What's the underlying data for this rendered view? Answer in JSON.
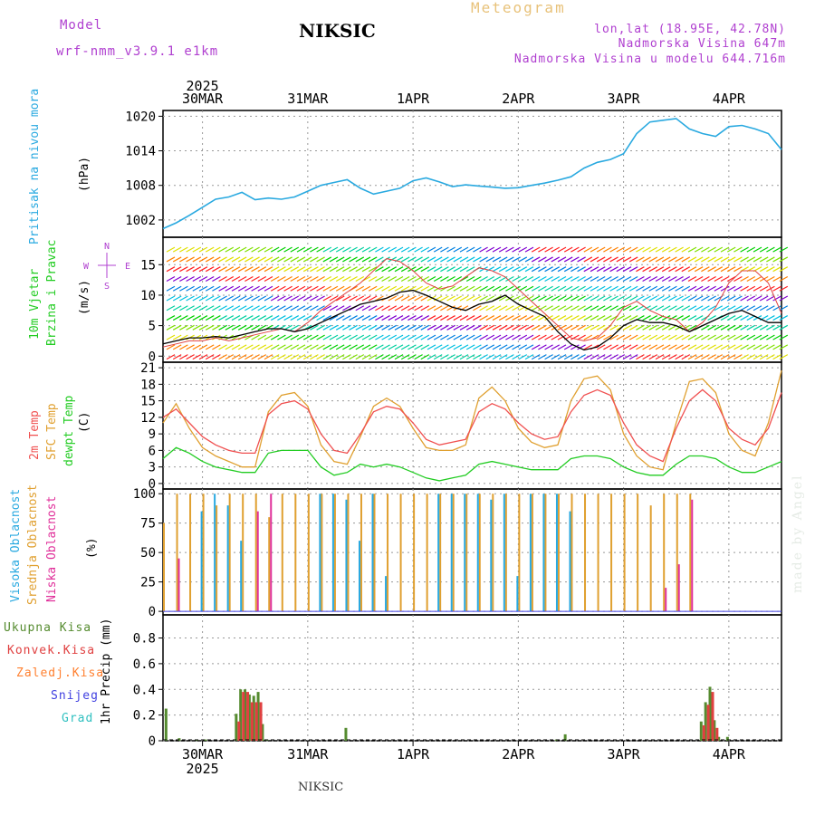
{
  "header": {
    "model_label": "Model",
    "model_name": "wrf-nmm_v3.9.1 e1km",
    "station": "NIKSIC",
    "title": "Meteogram",
    "lonlat": "lon,lat (18.95E, 42.78N)",
    "elevation": "Nadmorska Visina 647m",
    "model_elevation": "Nadmorska Visina u modelu 644.716m"
  },
  "footer": {
    "station": "NIKSIC",
    "watermark": "made by Angel"
  },
  "colors": {
    "pressure": "#29a9e0",
    "temp2m": "#f05050",
    "sfc_temp": "#e0a030",
    "dewpt": "#22cc22",
    "high_cloud": "#29a9e0",
    "mid_cloud": "#e0a030",
    "low_cloud": "#e0309a",
    "total_precip": "#558b2f",
    "conv_precip": "#e04040",
    "frozen_precip": "#ff8030",
    "snow": "#4040e0",
    "hail": "#30c0c0",
    "model_text": "#b040d0",
    "title_text": "#e8c27a"
  },
  "chart_data": [
    {
      "type": "line",
      "panel": "pressure",
      "ylabel": "(hPa)",
      "side_labels": [
        "Pritisak na nivou mora"
      ],
      "x_tick_labels": [
        "30MAR",
        "31MAR",
        "1APR",
        "2APR",
        "3APR",
        "4APR"
      ],
      "x_year": "2025",
      "yticks": [
        1002,
        1008,
        1014,
        1020
      ],
      "ylim": [
        999,
        1021
      ],
      "grid": true,
      "x_start": "2025-03-29 15:00",
      "x_end": "2025-04-04 12:00",
      "series": [
        {
          "x": [
            "2025-03-29 15:00",
            "2025-03-29 18:00",
            "2025-03-29 21:00",
            "2025-03-30 00:00",
            "2025-03-30 03:00",
            "2025-03-30 06:00",
            "2025-03-30 09:00",
            "2025-03-30 12:00",
            "2025-03-30 15:00",
            "2025-03-30 18:00",
            "2025-03-30 21:00",
            "2025-03-31 00:00",
            "2025-03-31 03:00",
            "2025-03-31 06:00",
            "2025-03-31 09:00",
            "2025-03-31 12:00",
            "2025-03-31 15:00",
            "2025-03-31 18:00",
            "2025-03-31 21:00",
            "2025-04-01 00:00",
            "2025-04-01 03:00",
            "2025-04-01 06:00",
            "2025-04-01 09:00",
            "2025-04-01 12:00",
            "2025-04-01 15:00",
            "2025-04-01 18:00",
            "2025-04-01 21:00",
            "2025-04-02 00:00",
            "2025-04-02 03:00",
            "2025-04-02 06:00",
            "2025-04-02 09:00",
            "2025-04-02 12:00",
            "2025-04-02 15:00",
            "2025-04-02 18:00",
            "2025-04-02 21:00",
            "2025-04-03 00:00",
            "2025-04-03 03:00",
            "2025-04-03 06:00",
            "2025-04-03 09:00",
            "2025-04-03 12:00",
            "2025-04-03 15:00",
            "2025-04-03 18:00",
            "2025-04-03 21:00",
            "2025-04-04 00:00",
            "2025-04-04 03:00",
            "2025-04-04 06:00",
            "2025-04-04 09:00",
            "2025-04-04 12:00"
          ],
          "values": [
            1000.5,
            1001.5,
            1002.8,
            1004.2,
            1005.6,
            1006.0,
            1006.8,
            1005.5,
            1005.8,
            1005.6,
            1006.0,
            1007.0,
            1008.0,
            1008.5,
            1009.0,
            1007.5,
            1006.5,
            1007.0,
            1007.5,
            1008.8,
            1009.3,
            1008.6,
            1007.8,
            1008.1,
            1007.9,
            1007.7,
            1007.5,
            1007.6,
            1008.0,
            1008.4,
            1008.9,
            1009.5,
            1011.0,
            1012.0,
            1012.5,
            1013.5,
            1017.0,
            1019.0,
            1019.3,
            1019.6,
            1017.8,
            1017.0,
            1016.5,
            1018.2,
            1018.4,
            1017.8,
            1017.0,
            1014.2
          ]
        }
      ]
    },
    {
      "type": "line",
      "panel": "wind",
      "ylabel": "(m/s)",
      "side_labels": [
        "10m Vjetar",
        "Brzina i Pravac"
      ],
      "compass": [
        "N",
        "W",
        "E",
        "S"
      ],
      "yticks": [
        0,
        5,
        10,
        15
      ],
      "ylim": [
        -1,
        19.5
      ],
      "series": [
        {
          "name": "speed",
          "values": [
            2.0,
            2.5,
            3.0,
            3.0,
            3.2,
            3.0,
            3.5,
            4.0,
            4.5,
            4.5,
            4.0,
            4.5,
            5.5,
            6.5,
            7.5,
            8.5,
            9.0,
            9.5,
            10.5,
            10.8,
            10.0,
            9.0,
            8.0,
            7.5,
            8.5,
            9.0,
            10.0,
            8.5,
            7.5,
            6.5,
            4.0,
            2.0,
            1.0,
            1.5,
            3.0,
            5.0,
            6.0,
            5.5,
            5.5,
            5.0,
            4.0,
            5.0,
            6.0,
            7.0,
            7.5,
            6.5,
            5.5,
            5.5
          ]
        },
        {
          "name": "gust",
          "values": [
            1.5,
            2.0,
            2.5,
            2.5,
            3.0,
            2.5,
            3.0,
            3.5,
            4.0,
            4.5,
            4.0,
            5.5,
            7.5,
            9.0,
            10.5,
            12.0,
            14.0,
            16.0,
            15.5,
            14.0,
            12.0,
            11.0,
            11.5,
            13.0,
            14.5,
            14.0,
            13.0,
            11.0,
            9.0,
            7.0,
            5.0,
            3.0,
            2.5,
            3.0,
            5.0,
            8.0,
            9.0,
            7.5,
            6.5,
            6.0,
            4.0,
            5.5,
            8.0,
            12.0,
            14.0,
            14.0,
            12.0,
            7.0
          ]
        }
      ]
    },
    {
      "type": "line",
      "panel": "temperature",
      "ylabel": "(C)",
      "side_labels": [
        "2m Temp",
        "SFC Temp",
        "dewpt Temp"
      ],
      "yticks": [
        0,
        3,
        6,
        9,
        12,
        15,
        18,
        21
      ],
      "ylim": [
        -1,
        22
      ],
      "series": [
        {
          "name": "2m Temp",
          "values": [
            12.0,
            13.5,
            11.0,
            8.5,
            7.0,
            6.0,
            5.5,
            5.5,
            12.5,
            14.5,
            15.0,
            13.5,
            9.0,
            6.0,
            5.5,
            9.0,
            13.0,
            14.0,
            13.5,
            11.0,
            8.0,
            7.0,
            7.5,
            8.0,
            13.0,
            14.5,
            13.5,
            11.0,
            9.0,
            8.0,
            8.5,
            13.0,
            16.0,
            17.0,
            16.0,
            11.0,
            7.0,
            5.0,
            4.0,
            10.0,
            15.0,
            17.0,
            15.0,
            10.0,
            8.0,
            7.0,
            10.0,
            16.5
          ]
        },
        {
          "name": "SFC Temp",
          "values": [
            11.0,
            14.5,
            10.0,
            6.5,
            5.0,
            4.0,
            3.0,
            3.0,
            13.0,
            16.0,
            16.5,
            14.0,
            7.0,
            4.0,
            3.5,
            8.5,
            14.0,
            15.5,
            14.0,
            10.0,
            6.5,
            6.0,
            6.0,
            7.0,
            15.5,
            17.5,
            15.0,
            10.0,
            7.5,
            6.5,
            7.0,
            15.0,
            19.0,
            19.5,
            17.0,
            9.0,
            5.0,
            3.0,
            2.5,
            11.0,
            18.5,
            19.0,
            16.5,
            9.0,
            6.0,
            5.0,
            11.0,
            20.5
          ]
        },
        {
          "name": "dewpt Temp",
          "values": [
            4.5,
            6.5,
            5.5,
            4.0,
            3.0,
            2.5,
            2.0,
            2.0,
            5.5,
            6.0,
            6.0,
            6.0,
            3.0,
            1.5,
            2.0,
            3.5,
            3.0,
            3.5,
            3.0,
            2.0,
            1.0,
            0.5,
            1.0,
            1.5,
            3.5,
            4.0,
            3.5,
            3.0,
            2.5,
            2.5,
            2.5,
            4.5,
            5.0,
            5.0,
            4.5,
            3.0,
            2.0,
            1.5,
            1.5,
            3.5,
            5.0,
            5.0,
            4.5,
            3.0,
            2.0,
            2.0,
            3.0,
            4.0
          ]
        }
      ]
    },
    {
      "type": "bar",
      "panel": "cloud",
      "ylabel": "(%)",
      "side_labels": [
        "Visoka Oblacnost",
        "Srednja Oblacnost",
        "Niska Oblacnost"
      ],
      "yticks": [
        0,
        25,
        50,
        75,
        100
      ],
      "ylim": [
        -3,
        104
      ],
      "series": [
        {
          "name": "Visoka Oblacnost",
          "values": [
            0,
            0,
            0,
            85,
            100,
            90,
            60,
            0,
            0,
            0,
            0,
            0,
            100,
            100,
            95,
            60,
            100,
            30,
            0,
            0,
            0,
            100,
            100,
            100,
            100,
            95,
            100,
            30,
            100,
            100,
            100,
            85,
            0,
            0,
            0,
            0,
            0,
            0,
            0,
            0,
            0,
            0,
            0,
            0,
            0,
            0,
            0,
            0
          ]
        },
        {
          "name": "Srednja Oblacnost",
          "values": [
            75,
            100,
            100,
            100,
            90,
            100,
            100,
            100,
            80,
            100,
            100,
            100,
            100,
            100,
            100,
            100,
            100,
            100,
            100,
            100,
            100,
            100,
            100,
            100,
            100,
            100,
            100,
            100,
            100,
            100,
            100,
            100,
            100,
            100,
            100,
            100,
            100,
            90,
            100,
            100,
            100,
            0,
            0,
            0,
            0,
            0,
            0,
            0
          ]
        },
        {
          "name": "Niska Oblacnost",
          "values": [
            0,
            45,
            0,
            0,
            0,
            0,
            0,
            85,
            100,
            0,
            0,
            0,
            0,
            0,
            0,
            0,
            0,
            0,
            0,
            0,
            0,
            0,
            0,
            0,
            0,
            0,
            0,
            0,
            0,
            0,
            0,
            0,
            0,
            0,
            0,
            0,
            0,
            0,
            20,
            40,
            95,
            0,
            0,
            0,
            0,
            0,
            0,
            0
          ]
        }
      ]
    },
    {
      "type": "bar",
      "panel": "precip",
      "ylabel": "1hr Precip (mm)",
      "legend": [
        "Ukupna Kisa",
        "Konvek.Kisa",
        "Zaledj.Kisa",
        "Snijeg",
        "Grad"
      ],
      "yticks": [
        0,
        0.2,
        0.4,
        0.6,
        0.8
      ],
      "ylim": [
        0,
        0.98
      ],
      "x_tick_labels": [
        "30MAR",
        "31MAR",
        "1APR",
        "2APR",
        "3APR",
        "4APR"
      ],
      "x_year": "2025",
      "series": [
        {
          "name": "Ukupna Kisa",
          "x": [
            "2025-03-29 16:00",
            "2025-03-29 19:00",
            "2025-03-29 23:00",
            "2025-03-30 01:00",
            "2025-03-30 08:00",
            "2025-03-30 09:00",
            "2025-03-30 10:00",
            "2025-03-30 11:00",
            "2025-03-30 12:00",
            "2025-03-30 13:00",
            "2025-03-30 14:00",
            "2025-03-30 15:00",
            "2025-03-31 09:00",
            "2025-04-02 09:00",
            "2025-04-02 11:00",
            "2025-04-03 18:00",
            "2025-04-03 19:00",
            "2025-04-03 20:00",
            "2025-04-03 21:00",
            "2025-04-03 22:00",
            "2025-04-04 00:00"
          ],
          "values": [
            0.25,
            0.02,
            0.01,
            0.01,
            0.21,
            0.4,
            0.4,
            0.36,
            0.35,
            0.38,
            0.13,
            0.01,
            0.1,
            0.01,
            0.05,
            0.15,
            0.3,
            0.42,
            0.16,
            0.03,
            0.03
          ]
        },
        {
          "name": "Konvek.Kisa",
          "x": [
            "2025-03-30 08:00",
            "2025-03-30 09:00",
            "2025-03-30 10:00",
            "2025-03-30 11:00",
            "2025-03-30 12:00",
            "2025-03-30 13:00",
            "2025-04-03 18:00",
            "2025-04-03 19:00",
            "2025-04-03 20:00",
            "2025-04-03 21:00"
          ],
          "values": [
            0.15,
            0.38,
            0.38,
            0.3,
            0.3,
            0.3,
            0.12,
            0.28,
            0.38,
            0.1
          ]
        }
      ]
    }
  ]
}
